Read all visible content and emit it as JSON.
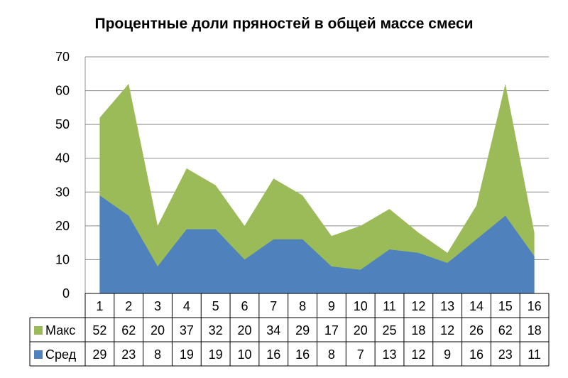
{
  "chart_data": {
    "type": "area",
    "title": "Процентные доли пряностей в общей массе смеси",
    "categories": [
      "1",
      "2",
      "3",
      "4",
      "5",
      "6",
      "7",
      "8",
      "9",
      "10",
      "11",
      "12",
      "13",
      "14",
      "15",
      "16"
    ],
    "series": [
      {
        "name": "Макс",
        "color": "#9bbb59",
        "values": [
          52,
          62,
          20,
          37,
          32,
          20,
          34,
          29,
          17,
          20,
          25,
          18,
          12,
          26,
          62,
          18
        ]
      },
      {
        "name": "Сред",
        "color": "#4f81bd",
        "values": [
          29,
          23,
          8,
          19,
          19,
          10,
          16,
          16,
          8,
          7,
          13,
          12,
          9,
          16,
          23,
          11
        ]
      }
    ],
    "ylim": [
      0,
      70
    ],
    "yticks": [
      "0",
      "10",
      "20",
      "30",
      "40",
      "50",
      "60",
      "70"
    ],
    "grid": true,
    "legend": "data-table"
  }
}
